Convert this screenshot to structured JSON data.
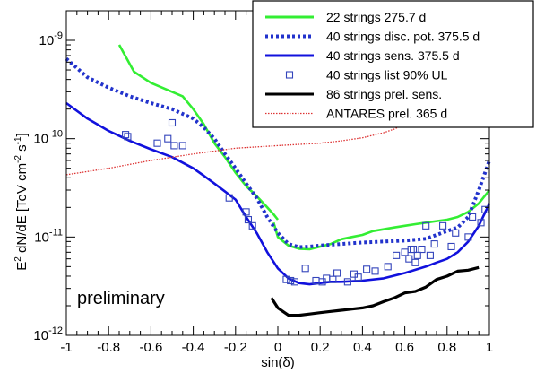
{
  "chart_data": {
    "type": "line",
    "xlabel": "sin(δ)",
    "ylabel_parts": [
      "E",
      "2",
      " dN/dE [TeV cm",
      "-2",
      " s",
      "-1",
      "]"
    ],
    "xlim": [
      -1,
      1
    ],
    "ylim": [
      1e-12,
      2e-09
    ],
    "y_scale": "log",
    "x_ticks": [
      "-1",
      "-0.8",
      "-0.6",
      "-0.4",
      "-0.2",
      "0",
      "0.2",
      "0.4",
      "0.6",
      "0.8",
      "1"
    ],
    "x_tick_values": [
      -1,
      -0.8,
      -0.6,
      -0.4,
      -0.2,
      0,
      0.2,
      0.4,
      0.6,
      0.8,
      1
    ],
    "y_ticks": [
      {
        "value": 1e-12,
        "base": "10",
        "exp": "-12"
      },
      {
        "value": 1e-11,
        "base": "10",
        "exp": "-11"
      },
      {
        "value": 1e-10,
        "base": "10",
        "exp": "-10"
      },
      {
        "value": 1e-09,
        "base": "10",
        "exp": "-9"
      }
    ],
    "annotation": "preliminary",
    "legend_position": "top-right",
    "series": [
      {
        "name": "22 strings 275.7 d",
        "style": "line",
        "color": "#33ee33",
        "x": [
          -0.75,
          -0.68,
          -0.6,
          -0.5,
          -0.45,
          -0.4,
          -0.35,
          -0.3,
          -0.25,
          -0.2,
          -0.15,
          -0.1,
          -0.05,
          -0.02,
          0.0
        ],
        "y": [
          9e-10,
          4.8e-10,
          3.7e-10,
          3e-10,
          2.7e-10,
          2e-10,
          1.4e-10,
          9e-11,
          6.5e-11,
          4.5e-11,
          3.3e-11,
          2.6e-11,
          2e-11,
          1.7e-11,
          1.5e-11
        ]
      },
      {
        "name": "",
        "style": "line",
        "color": "#33ee33",
        "x": [
          -0.02,
          0.0,
          0.05,
          0.1,
          0.15,
          0.2,
          0.25,
          0.3,
          0.35,
          0.4,
          0.45,
          0.5,
          0.55,
          0.6,
          0.65,
          0.7,
          0.75,
          0.8,
          0.85,
          0.9,
          0.95,
          1.0
        ],
        "y": [
          1.4e-11,
          1e-11,
          8.2e-12,
          7.6e-12,
          7.5e-12,
          8e-12,
          8.5e-12,
          9.5e-12,
          1e-11,
          1.05e-11,
          1.15e-11,
          1.2e-11,
          1.25e-11,
          1.3e-11,
          1.35e-11,
          1.4e-11,
          1.45e-11,
          1.5e-11,
          1.6e-11,
          1.8e-11,
          2.2e-11,
          3e-11
        ]
      },
      {
        "name": "40 strings disc. pot. 375.5 d",
        "style": "dotted",
        "color": "#2233cc",
        "x": [
          -1.0,
          -0.9,
          -0.8,
          -0.7,
          -0.6,
          -0.5,
          -0.4,
          -0.35,
          -0.3,
          -0.25,
          -0.2,
          -0.15,
          -0.1,
          -0.05,
          0.0,
          0.05,
          0.1,
          0.15,
          0.2,
          0.3,
          0.4,
          0.5,
          0.6,
          0.7,
          0.75,
          0.8,
          0.85,
          0.9,
          0.95,
          1.0
        ],
        "y": [
          6.5e-10,
          4.2e-10,
          3.3e-10,
          2.7e-10,
          2.3e-10,
          2e-10,
          1.6e-10,
          1.3e-10,
          1e-10,
          7e-11,
          5e-11,
          3.5e-11,
          2.5e-11,
          1.6e-11,
          1.1e-11,
          8.5e-12,
          7.9e-12,
          8e-12,
          8.2e-12,
          8.5e-12,
          8.8e-12,
          9e-12,
          9.2e-12,
          9.6e-12,
          1.05e-11,
          1.15e-11,
          1.25e-11,
          1.6e-11,
          3e-11,
          6e-11
        ]
      },
      {
        "name": "40 strings sens. 375.5 d",
        "style": "line",
        "color": "#1111dd",
        "x": [
          -1.0,
          -0.9,
          -0.8,
          -0.7,
          -0.6,
          -0.5,
          -0.4,
          -0.35,
          -0.3,
          -0.25,
          -0.2,
          -0.15,
          -0.1,
          -0.05,
          0.0,
          0.05,
          0.1,
          0.15,
          0.2,
          0.25,
          0.3,
          0.4,
          0.5,
          0.6,
          0.7,
          0.75,
          0.8,
          0.85,
          0.9,
          0.95,
          1.0
        ],
        "y": [
          2.3e-10,
          1.6e-10,
          1.2e-10,
          9.5e-11,
          7.8e-11,
          6.5e-11,
          5e-11,
          4.2e-11,
          3.5e-11,
          2.9e-11,
          2.4e-11,
          1.6e-11,
          1.1e-11,
          7e-12,
          4.8e-12,
          3.8e-12,
          3.4e-12,
          3.3e-12,
          3.4e-12,
          3.5e-12,
          3.5e-12,
          3.6e-12,
          3.8e-12,
          4.3e-12,
          5e-12,
          5.5e-12,
          6e-12,
          7e-12,
          9e-12,
          1.3e-11,
          2.2e-11
        ]
      },
      {
        "name": "40 strings list 90% UL",
        "style": "markers",
        "color": "#3344bb",
        "x": [
          -0.72,
          -0.71,
          -0.57,
          -0.52,
          -0.5,
          -0.49,
          -0.45,
          -0.23,
          -0.15,
          -0.14,
          -0.12,
          0.04,
          0.06,
          0.08,
          0.13,
          0.18,
          0.21,
          0.23,
          0.26,
          0.28,
          0.33,
          0.36,
          0.38,
          0.42,
          0.46,
          0.52,
          0.56,
          0.6,
          0.62,
          0.63,
          0.64,
          0.65,
          0.66,
          0.68,
          0.7,
          0.72,
          0.74,
          0.78,
          0.82,
          0.84,
          0.9,
          0.92,
          0.96,
          0.98
        ],
        "y": [
          1.1e-10,
          1.05e-10,
          9e-11,
          1e-10,
          1.45e-10,
          8.5e-11,
          8.5e-11,
          2.5e-11,
          1.8e-11,
          1.5e-11,
          1.3e-11,
          3.7e-12,
          3.6e-12,
          3.5e-12,
          4.8e-12,
          3.6e-12,
          3.5e-12,
          3.8e-12,
          3.7e-12,
          4.3e-12,
          3.5e-12,
          4.2e-12,
          3.9e-12,
          4.7e-12,
          4.5e-12,
          5e-12,
          6.5e-12,
          7e-12,
          6e-12,
          7.5e-12,
          7.5e-12,
          5.5e-12,
          6.5e-12,
          7.5e-12,
          1.3e-11,
          6.5e-12,
          8.5e-12,
          1.3e-11,
          8e-12,
          1.1e-11,
          1e-11,
          1.6e-11,
          1.4e-11,
          1.9e-11
        ]
      },
      {
        "name": "86 strings prel. sens.",
        "style": "line",
        "color": "#000000",
        "x": [
          -0.03,
          0.0,
          0.05,
          0.1,
          0.15,
          0.2,
          0.25,
          0.3,
          0.35,
          0.4,
          0.45,
          0.5,
          0.55,
          0.6,
          0.65,
          0.7,
          0.75,
          0.8,
          0.85,
          0.9,
          0.95
        ],
        "y": [
          2.4e-12,
          1.9e-12,
          1.6e-12,
          1.6e-12,
          1.65e-12,
          1.7e-12,
          1.75e-12,
          1.8e-12,
          1.85e-12,
          1.9e-12,
          2e-12,
          2.2e-12,
          2.4e-12,
          2.7e-12,
          2.8e-12,
          3.1e-12,
          3.7e-12,
          4e-12,
          4.5e-12,
          4.6e-12,
          4.9e-12
        ]
      },
      {
        "name": "ANTARES prel. 365 d",
        "style": "redDotted",
        "color": "#dd3333",
        "x": [
          -1.0,
          -0.8,
          -0.6,
          -0.4,
          -0.2,
          0.0,
          0.2,
          0.3,
          0.4,
          0.5,
          0.55,
          0.6,
          0.65,
          0.68
        ],
        "y": [
          4.3e-11,
          5e-11,
          6e-11,
          7e-11,
          8e-11,
          8.5e-11,
          9e-11,
          9.5e-11,
          1.02e-10,
          1.15e-10,
          1.25e-10,
          1.4e-10,
          1.7e-10,
          2e-10
        ]
      }
    ]
  }
}
